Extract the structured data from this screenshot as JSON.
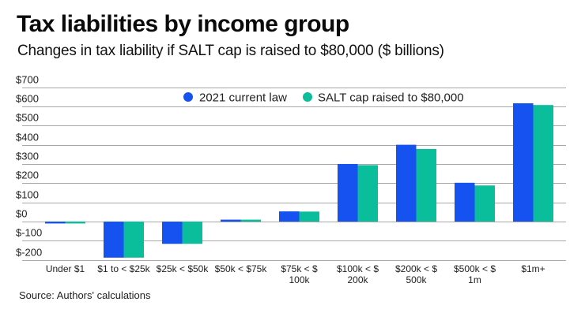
{
  "header": {
    "title": "Tax liabilities by income group",
    "subtitle": "Changes in tax liability if SALT cap is raised to $80,000 ($ billions)"
  },
  "footer": {
    "source": "Source: Authors' calculations"
  },
  "colors": {
    "series_current_law": "#1652F0",
    "series_salt_raised": "#0BBE9B",
    "gridline": "#a8a8a8"
  },
  "chart_data": {
    "type": "bar",
    "title": "Tax liabilities by income group",
    "subtitle": "Changes in tax liability if SALT cap is raised to $80,000 ($ billions)",
    "xlabel": "",
    "ylabel": "",
    "ylim": [
      -200,
      700
    ],
    "yticks": [
      700,
      600,
      500,
      400,
      300,
      200,
      100,
      0,
      -100,
      -200
    ],
    "ytick_labels": [
      "$700",
      "$600",
      "$500",
      "$400",
      "$300",
      "$200",
      "$100",
      "$0",
      "$-100",
      "$-200"
    ],
    "grid": true,
    "legend_position": "top-center",
    "categories": [
      [
        "Under $1"
      ],
      [
        "$1 to < $25k"
      ],
      [
        "$25k < $50k"
      ],
      [
        "$50k < $75k"
      ],
      [
        "$75k < $",
        "100k"
      ],
      [
        "$100k < $",
        "200k"
      ],
      [
        "$200k < $",
        "500k"
      ],
      [
        "$500k < $",
        "1m"
      ],
      [
        "$1m+"
      ]
    ],
    "series": [
      {
        "name": "2021 current law",
        "color": "#1652F0",
        "values": [
          -10,
          -188,
          -116,
          10,
          53,
          300,
          400,
          202,
          616
        ]
      },
      {
        "name": "SALT cap raised to $80,000",
        "color": "#0BBE9B",
        "values": [
          -10,
          -188,
          -116,
          10,
          52,
          294,
          378,
          188,
          607
        ]
      }
    ],
    "source": "Source: Authors' calculations"
  }
}
